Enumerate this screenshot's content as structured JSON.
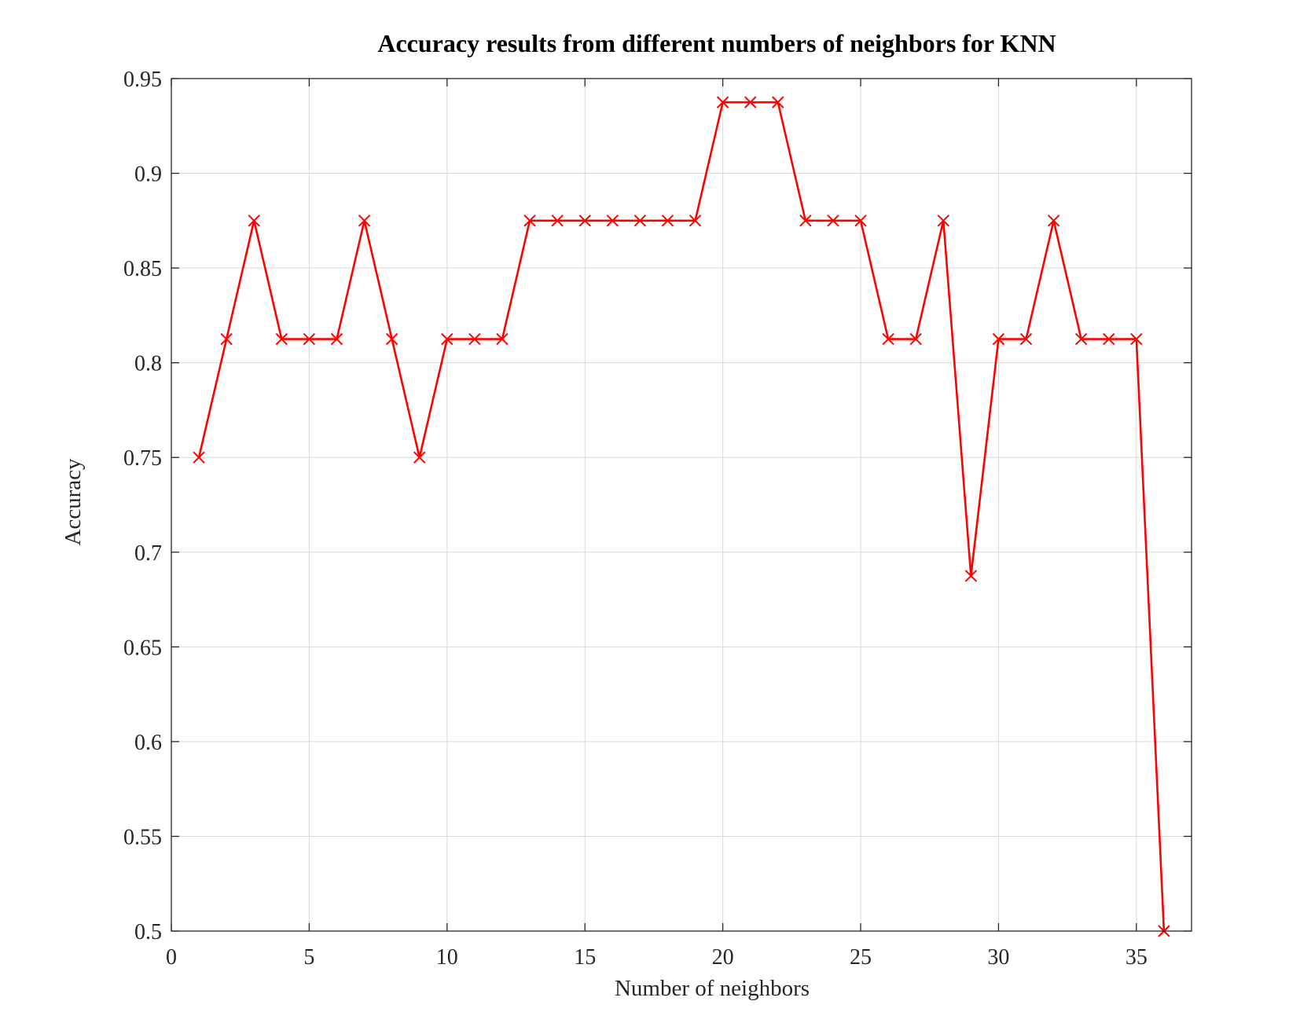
{
  "chart_data": {
    "type": "line",
    "title": "Accuracy results from different numbers of neighbors for KNN",
    "xlabel": "Number of neighbors",
    "ylabel": "Accuracy",
    "xlim": [
      0,
      37
    ],
    "ylim": [
      0.5,
      0.95
    ],
    "x_ticks": [
      0,
      5,
      10,
      15,
      20,
      25,
      30,
      35
    ],
    "x_tick_labels": [
      "0",
      "5",
      "10",
      "15",
      "20",
      "25",
      "30",
      "35"
    ],
    "y_ticks": [
      0.5,
      0.55,
      0.6,
      0.65,
      0.7,
      0.75,
      0.8,
      0.85,
      0.9,
      0.95
    ],
    "y_tick_labels": [
      "0.5",
      "0.55",
      "0.6",
      "0.65",
      "0.7",
      "0.75",
      "0.8",
      "0.85",
      "0.9",
      "0.95"
    ],
    "grid": true,
    "legend": "none",
    "series": [
      {
        "color": "#ff0000",
        "marker": "x",
        "x": [
          1,
          2,
          3,
          4,
          5,
          6,
          7,
          8,
          9,
          10,
          11,
          12,
          13,
          14,
          15,
          16,
          17,
          18,
          19,
          20,
          21,
          22,
          23,
          24,
          25,
          26,
          27,
          28,
          29,
          30,
          31,
          32,
          33,
          34,
          35,
          36
        ],
        "y": [
          0.75,
          0.8125,
          0.875,
          0.8125,
          0.8125,
          0.8125,
          0.875,
          0.8125,
          0.75,
          0.8125,
          0.8125,
          0.8125,
          0.875,
          0.875,
          0.875,
          0.875,
          0.875,
          0.875,
          0.875,
          0.9375,
          0.9375,
          0.9375,
          0.875,
          0.875,
          0.875,
          0.8125,
          0.8125,
          0.875,
          0.6875,
          0.8125,
          0.8125,
          0.875,
          0.8125,
          0.8125,
          0.8125,
          0.5
        ]
      }
    ]
  },
  "colors": {
    "series": "#ff0000",
    "grid": "#d9d9d9",
    "axes": "#262626",
    "background": "#ffffff"
  }
}
